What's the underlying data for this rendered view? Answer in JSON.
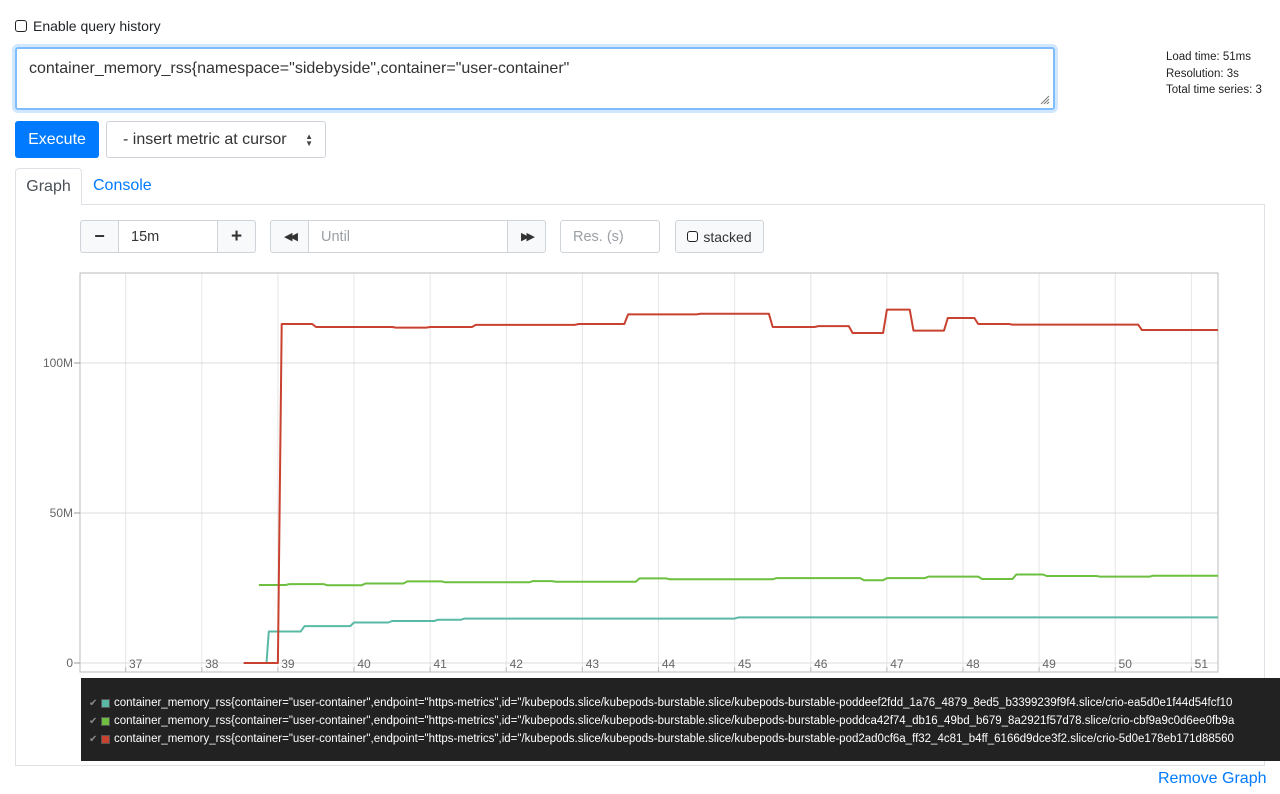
{
  "history": {
    "label": "Enable query history"
  },
  "query": {
    "value": "container_memory_rss{namespace=\"sidebyside\",container=\"user-container\""
  },
  "stats": {
    "load_time": "Load time: 51ms",
    "resolution": "Resolution: 3s",
    "total_series": "Total time series: 3"
  },
  "toolbar": {
    "execute_label": "Execute",
    "metric_select_label": "- insert metric at cursor"
  },
  "tabs": {
    "graph": "Graph",
    "console": "Console"
  },
  "controls": {
    "minus": "−",
    "range_value": "15m",
    "plus": "+",
    "back": "◀◀",
    "until_placeholder": "Until",
    "forward": "▶▶",
    "res_placeholder": "Res. (s)",
    "stacked_label": "stacked"
  },
  "chart_data": {
    "type": "line",
    "x_ticks": [
      "37",
      "38",
      "39",
      "40",
      "41",
      "42",
      "43",
      "44",
      "45",
      "46",
      "47",
      "48",
      "49",
      "50",
      "51"
    ],
    "y_ticks": [
      "0",
      "50M",
      "100M"
    ],
    "xlim": [
      36.4,
      51.35
    ],
    "ylim": [
      -3,
      130
    ],
    "grid": true,
    "series": [
      {
        "color": "#5ab9a5",
        "points": [
          [
            38.55,
            0
          ],
          [
            38.85,
            0
          ],
          [
            38.88,
            10.5
          ],
          [
            39.3,
            10.5
          ],
          [
            39.35,
            12.3
          ],
          [
            39.95,
            12.3
          ],
          [
            40.0,
            13.5
          ],
          [
            40.45,
            13.5
          ],
          [
            40.5,
            14.0
          ],
          [
            41.05,
            14.0
          ],
          [
            41.1,
            14.4
          ],
          [
            41.4,
            14.4
          ],
          [
            41.45,
            14.8
          ],
          [
            45.0,
            14.8
          ],
          [
            45.05,
            15.2
          ],
          [
            51.35,
            15.2
          ]
        ]
      },
      {
        "color": "#6cbf3f",
        "points": [
          [
            38.75,
            26.0
          ],
          [
            39.1,
            26.0
          ],
          [
            39.15,
            26.3
          ],
          [
            39.6,
            26.3
          ],
          [
            39.65,
            25.9
          ],
          [
            40.1,
            25.9
          ],
          [
            40.15,
            26.5
          ],
          [
            40.65,
            26.5
          ],
          [
            40.7,
            27.2
          ],
          [
            41.15,
            27.2
          ],
          [
            41.2,
            26.9
          ],
          [
            42.3,
            26.9
          ],
          [
            42.35,
            27.3
          ],
          [
            42.6,
            27.3
          ],
          [
            42.65,
            27.1
          ],
          [
            43.7,
            27.1
          ],
          [
            43.75,
            28.2
          ],
          [
            44.1,
            28.2
          ],
          [
            44.15,
            27.9
          ],
          [
            45.5,
            27.9
          ],
          [
            45.55,
            28.3
          ],
          [
            46.65,
            28.3
          ],
          [
            46.7,
            27.6
          ],
          [
            46.95,
            27.6
          ],
          [
            47.0,
            28.3
          ],
          [
            47.5,
            28.3
          ],
          [
            47.55,
            28.8
          ],
          [
            48.2,
            28.8
          ],
          [
            48.25,
            28.0
          ],
          [
            48.65,
            28.0
          ],
          [
            48.7,
            29.5
          ],
          [
            49.05,
            29.5
          ],
          [
            49.1,
            29.0
          ],
          [
            49.75,
            29.0
          ],
          [
            49.8,
            28.8
          ],
          [
            50.45,
            28.8
          ],
          [
            50.5,
            29.1
          ],
          [
            51.35,
            29.1
          ]
        ]
      },
      {
        "color": "#c9412f",
        "points": [
          [
            38.55,
            0
          ],
          [
            39.0,
            0
          ],
          [
            39.05,
            113.0
          ],
          [
            39.45,
            113.0
          ],
          [
            39.5,
            112.0
          ],
          [
            40.5,
            112.0
          ],
          [
            40.55,
            111.8
          ],
          [
            40.95,
            111.8
          ],
          [
            41.0,
            112.0
          ],
          [
            41.55,
            112.0
          ],
          [
            41.6,
            112.7
          ],
          [
            42.9,
            112.7
          ],
          [
            42.95,
            113.0
          ],
          [
            43.55,
            113.0
          ],
          [
            43.6,
            116.2
          ],
          [
            44.5,
            116.2
          ],
          [
            44.55,
            116.4
          ],
          [
            45.45,
            116.4
          ],
          [
            45.5,
            112.0
          ],
          [
            46.05,
            112.0
          ],
          [
            46.1,
            112.3
          ],
          [
            46.5,
            112.3
          ],
          [
            46.55,
            110.0
          ],
          [
            46.95,
            110.0
          ],
          [
            47.0,
            117.8
          ],
          [
            47.3,
            117.8
          ],
          [
            47.35,
            110.8
          ],
          [
            47.75,
            110.8
          ],
          [
            47.8,
            115.0
          ],
          [
            48.15,
            115.0
          ],
          [
            48.2,
            113.0
          ],
          [
            48.6,
            113.0
          ],
          [
            48.65,
            112.8
          ],
          [
            50.3,
            112.8
          ],
          [
            50.35,
            111.0
          ],
          [
            51.35,
            111.0
          ]
        ]
      }
    ]
  },
  "legend": {
    "items": [
      {
        "color": "#5ab9a5",
        "label": "container_memory_rss{container=\"user-container\",endpoint=\"https-metrics\",id=\"/kubepods.slice/kubepods-burstable.slice/kubepods-burstable-poddeef2fdd_1a76_4879_8ed5_b3399239f9f4.slice/crio-ea5d0e1f44d54fcf10"
      },
      {
        "color": "#6cbf3f",
        "label": "container_memory_rss{container=\"user-container\",endpoint=\"https-metrics\",id=\"/kubepods.slice/kubepods-burstable.slice/kubepods-burstable-poddca42f74_db16_49bd_b679_8a2921f57d78.slice/crio-cbf9a9c0d6ee0fb9a"
      },
      {
        "color": "#c9412f",
        "label": "container_memory_rss{container=\"user-container\",endpoint=\"https-metrics\",id=\"/kubepods.slice/kubepods-burstable.slice/kubepods-burstable-pod2ad0cf6a_ff32_4c81_b4ff_6166d9dce3f2.slice/crio-5d0e178eb171d88560"
      }
    ]
  },
  "footer": {
    "remove_graph": "Remove Graph"
  }
}
